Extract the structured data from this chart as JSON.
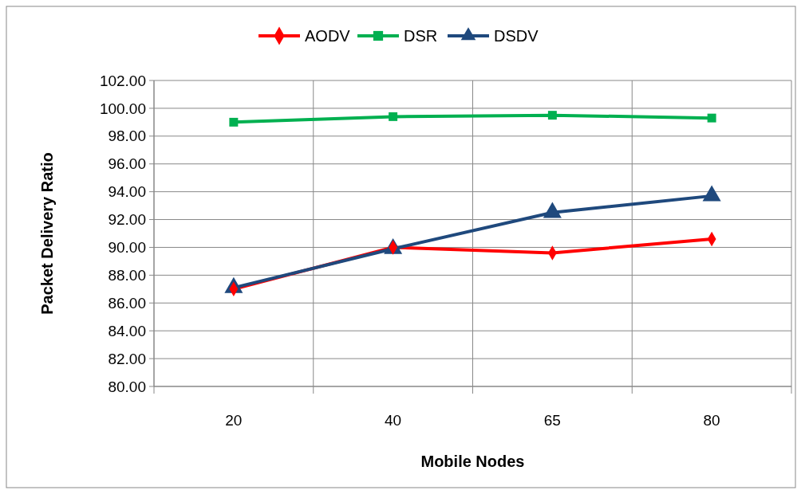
{
  "chart_data": {
    "type": "line",
    "xlabel": "Mobile Nodes",
    "ylabel": "Packet Delivery Ratio",
    "categories": [
      "20",
      "40",
      "65",
      "80"
    ],
    "series": [
      {
        "name": "AODV",
        "color": "#ff0000",
        "marker": "diamond",
        "values": [
          87.0,
          90.0,
          89.6,
          90.6
        ]
      },
      {
        "name": "DSR",
        "color": "#00b050",
        "marker": "square",
        "values": [
          99.0,
          99.4,
          99.5,
          99.3
        ]
      },
      {
        "name": "DSDV",
        "color": "#1f497d",
        "marker": "triangle",
        "values": [
          87.1,
          89.9,
          92.5,
          93.7
        ]
      }
    ],
    "ylim": [
      80,
      102
    ],
    "yticks": [
      {
        "value": 80,
        "label": "80.00"
      },
      {
        "value": 82,
        "label": "82.00"
      },
      {
        "value": 84,
        "label": "84.00"
      },
      {
        "value": 86,
        "label": "86.00"
      },
      {
        "value": 88,
        "label": "88.00"
      },
      {
        "value": 90,
        "label": "90.00"
      },
      {
        "value": 92,
        "label": "92.00"
      },
      {
        "value": 94,
        "label": "94.00"
      },
      {
        "value": 96,
        "label": "96.00"
      },
      {
        "value": 98,
        "label": "98.00"
      },
      {
        "value": 100,
        "label": "100.00"
      },
      {
        "value": 102,
        "label": "102.00"
      }
    ],
    "grid": true,
    "legend": "top"
  }
}
